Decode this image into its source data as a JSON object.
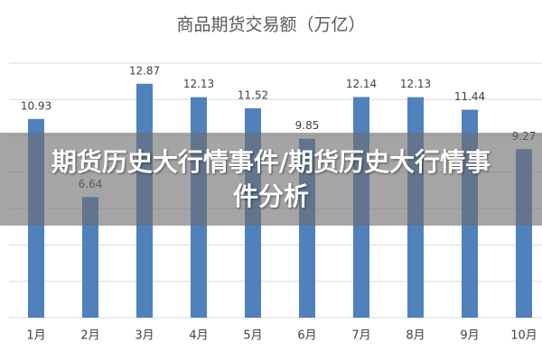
{
  "chart_data": {
    "type": "bar",
    "title": "商品期货交易额（万亿）",
    "categories": [
      "1月",
      "2月",
      "3月",
      "4月",
      "5月",
      "6月",
      "7月",
      "8月",
      "9月",
      "10月"
    ],
    "values": [
      10.93,
      6.64,
      12.87,
      12.13,
      11.52,
      9.85,
      12.14,
      12.13,
      11.44,
      9.27
    ],
    "color": "#4f81bd",
    "ylim": [
      0,
      14
    ],
    "yticks": [
      0,
      2,
      4,
      6,
      8,
      10,
      12,
      14
    ],
    "grid": true
  },
  "overlay_text": "期货历史大行情事件/期货历史大行情事件分析"
}
